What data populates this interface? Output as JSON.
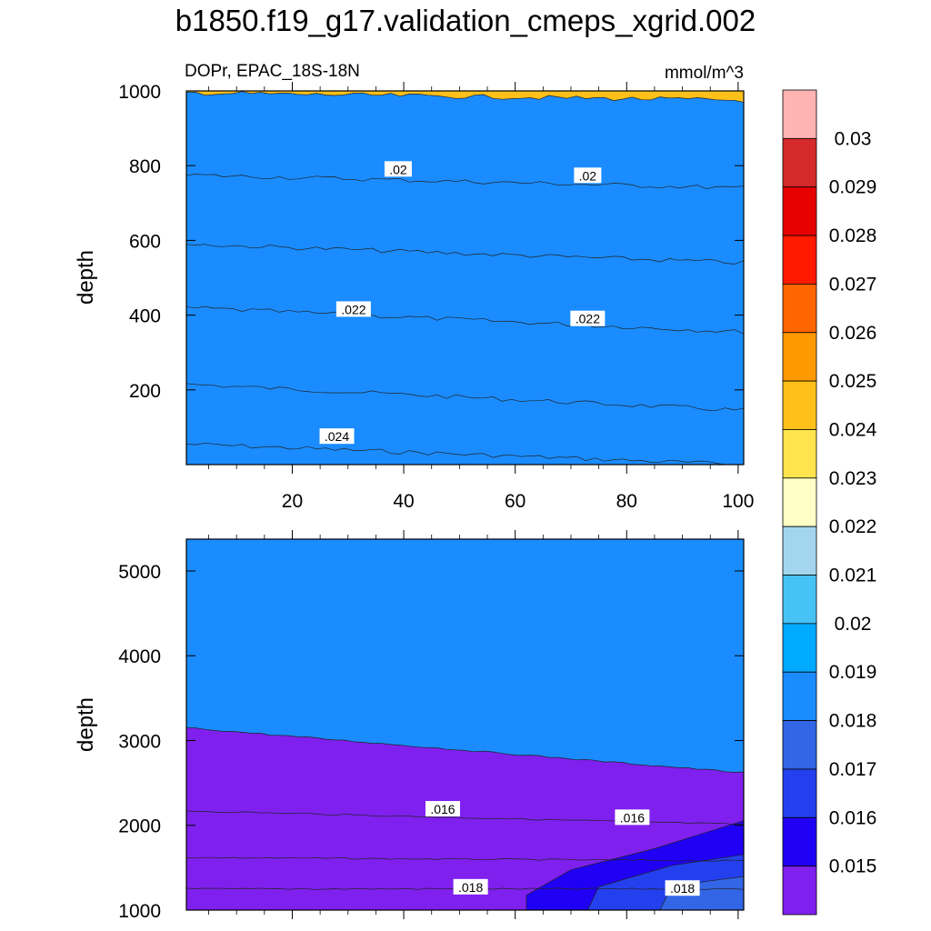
{
  "figure": {
    "title": "b1850.f19_g17.validation_cmeps_xgrid.002",
    "subtitle_left": "DOPr, EPAC_18S-18N",
    "subtitle_right": "mmol/m^3"
  },
  "chart_data": [
    {
      "type": "contour",
      "panel": "upper",
      "ylabel": "depth",
      "xlim": [
        1,
        101
      ],
      "ylim": [
        1000,
        0
      ],
      "xticks": [
        "20",
        "40",
        "60",
        "80",
        "100"
      ],
      "xtick_values": [
        20,
        40,
        60,
        80,
        100
      ],
      "yticks": [
        "200",
        "400",
        "600",
        "800",
        "1000"
      ],
      "ytick_values": [
        200,
        400,
        600,
        800,
        1000
      ],
      "contour_labels": [
        {
          "text": ".024",
          "x": 28,
          "y": 75
        },
        {
          "text": ".022",
          "x": 31,
          "y": 415
        },
        {
          "text": ".022",
          "x": 73,
          "y": 390
        },
        {
          "text": ".02",
          "x": 39,
          "y": 790
        },
        {
          "text": ".02",
          "x": 73,
          "y": 773
        }
      ],
      "boundaries": [
        {
          "level": 0.024,
          "depth_at_x1": 55,
          "depth_at_x101": 0
        },
        {
          "level": 0.023,
          "depth_at_x1": 215,
          "depth_at_x101": 145
        },
        {
          "level": 0.022,
          "depth_at_x1": 420,
          "depth_at_x101": 355
        },
        {
          "level": 0.021,
          "depth_at_x1": 590,
          "depth_at_x101": 540
        },
        {
          "level": 0.02,
          "depth_at_x1": 775,
          "depth_at_x101": 740
        },
        {
          "level": 0.019,
          "depth_at_x1": 995,
          "depth_at_x101": 975
        }
      ]
    },
    {
      "type": "contour",
      "panel": "lower",
      "ylabel": "depth",
      "xlim": [
        1,
        101
      ],
      "ylim": [
        5375,
        1000
      ],
      "yticks": [
        "1000",
        "2000",
        "3000",
        "4000",
        "5000"
      ],
      "ytick_values": [
        1000,
        2000,
        3000,
        4000,
        5000
      ],
      "contour_labels": [
        {
          "text": ".018",
          "x": 52,
          "y": 1270
        },
        {
          "text": ".018",
          "x": 90,
          "y": 1255
        },
        {
          "text": ".016",
          "x": 47,
          "y": 2190
        },
        {
          "text": ".016",
          "x": 81,
          "y": 2090
        }
      ],
      "boundaries": [
        {
          "level": 0.018,
          "depth_at_x1": 1250,
          "depth_at_x101": 1250
        },
        {
          "level": 0.017,
          "depth_at_x1": 1620,
          "depth_at_x101": 1580
        },
        {
          "level": 0.016,
          "depth_at_x1": 2170,
          "depth_at_x101": 2010
        },
        {
          "level": 0.015,
          "depth_at_x1": 3150,
          "depth_at_x101": 2620
        }
      ]
    }
  ],
  "colorbar": {
    "labels": [
      "0.03",
      "0.029",
      "0.028",
      "0.027",
      "0.026",
      "0.025",
      "0.024",
      "0.023",
      "0.022",
      "0.021",
      "0.02",
      "0.019",
      "0.018",
      "0.017",
      "0.016",
      "0.015"
    ],
    "colors": [
      "#ffb3b3",
      "#d42a2a",
      "#e60000",
      "#ff1a00",
      "#ff6600",
      "#ff9900",
      "#ffc01a",
      "#ffe44d",
      "#ffffc6",
      "#a3d6ee",
      "#47c2f5",
      "#00aaff",
      "#1a8cff",
      "#3366e6",
      "#2440ee",
      "#2000f5",
      "#7f20ee"
    ]
  }
}
